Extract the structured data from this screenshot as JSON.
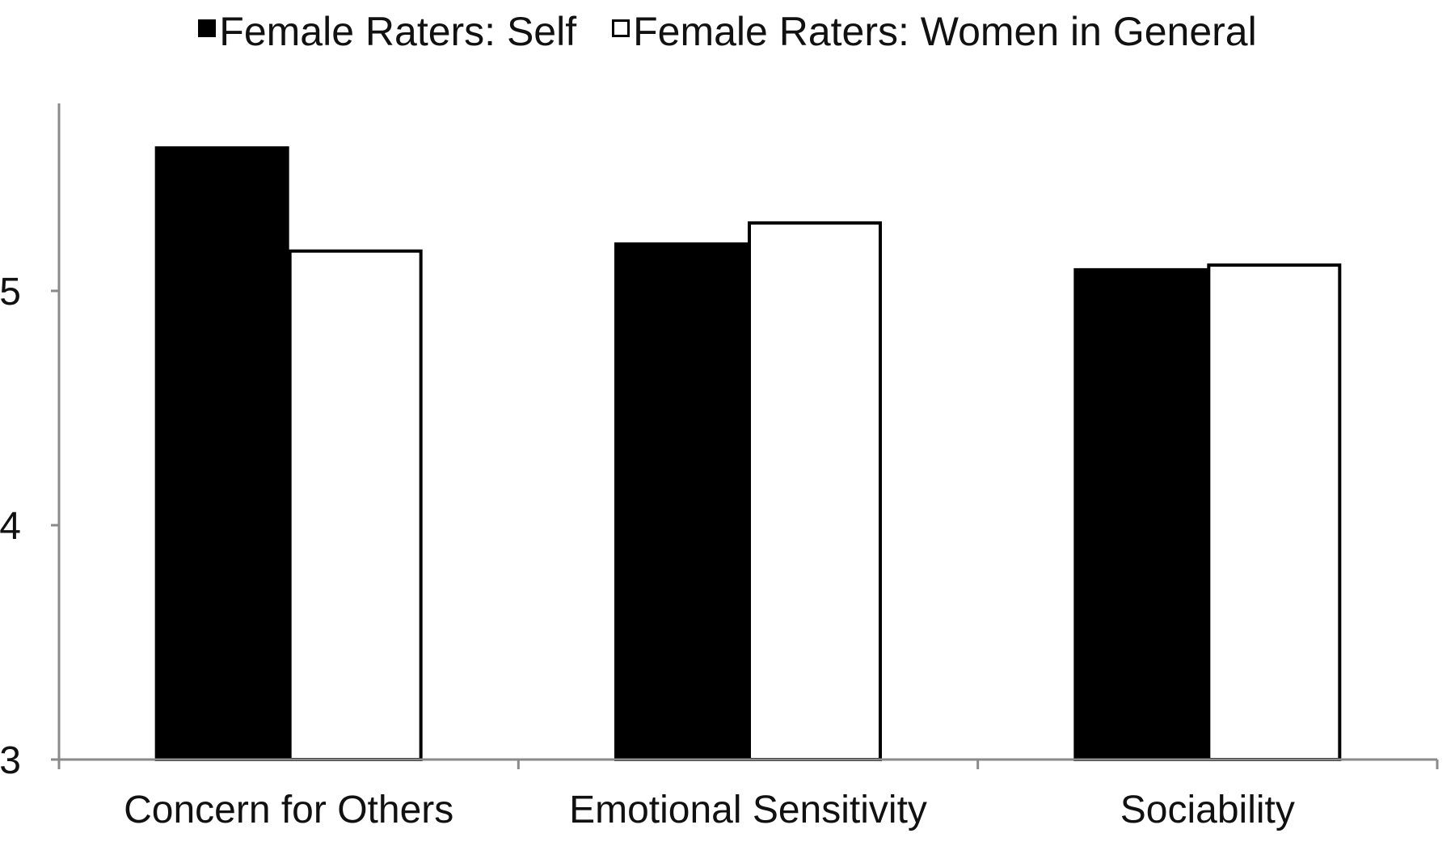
{
  "chart_data": {
    "type": "bar",
    "title": "",
    "xlabel": "",
    "ylabel": "",
    "categories": [
      "Concern for Others",
      "Emotional Sensitivity",
      "Sociability"
    ],
    "series": [
      {
        "name": "Female Raters: Self",
        "color": "#000000",
        "values": [
          5.61,
          5.2,
          5.09
        ]
      },
      {
        "name": "Female Raters: Women in General",
        "color": "#ffffff",
        "values": [
          5.17,
          5.29,
          5.11
        ]
      }
    ],
    "ylim": [
      3,
      5.8
    ],
    "yticks": [
      3,
      4,
      5
    ],
    "grid": false,
    "legend_position": "top-center"
  }
}
